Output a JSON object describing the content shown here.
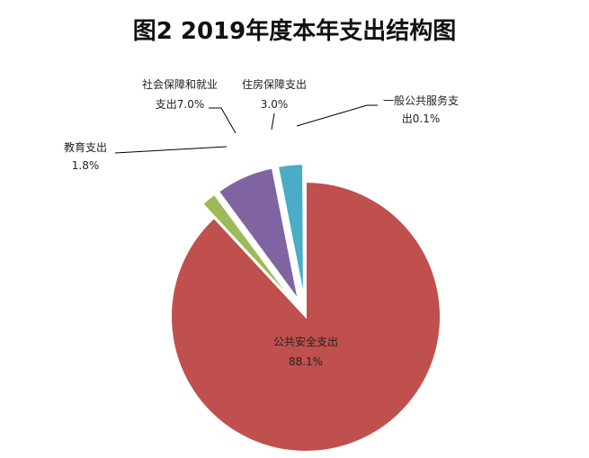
{
  "chart_data": {
    "type": "pie",
    "title": "图2 2019年度本年支出结构图",
    "slices": [
      {
        "name": "公共安全支出",
        "value": 88.1,
        "label": "公共安全支出",
        "pct_label": "88.1%",
        "color": "#c0504d"
      },
      {
        "name": "教育支出",
        "value": 1.8,
        "label": "教育支出",
        "pct_label": "1.8%",
        "color": "#9bbb59"
      },
      {
        "name": "社会保障和就业支出",
        "value": 7.0,
        "label": "社会保障和就业",
        "pct_label": "支出7.0%",
        "color": "#8064a2"
      },
      {
        "name": "住房保障支出",
        "value": 3.0,
        "label": "住房保障支出",
        "pct_label": "3.0%",
        "color": "#4bacc6"
      },
      {
        "name": "一般公共服务支出",
        "value": 0.1,
        "label": "一般公共服务支",
        "pct_label": "出0.1%",
        "color": "#f79646"
      }
    ],
    "legend": "none"
  }
}
